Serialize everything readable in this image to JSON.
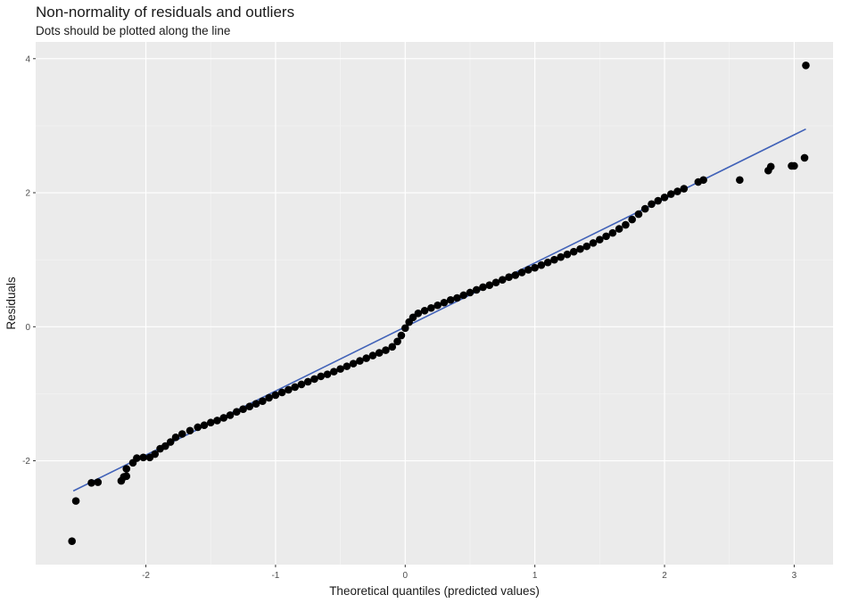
{
  "chart_data": {
    "type": "scatter",
    "title": "Non-normality of residuals and outliers",
    "subtitle": "Dots should be plotted along the line",
    "xlabel": "Theoretical quantiles (predicted values)",
    "ylabel": "Residuals",
    "xlim": [
      -2.85,
      3.3
    ],
    "ylim": [
      -3.55,
      4.25
    ],
    "x_ticks": [
      -2,
      -1,
      0,
      1,
      2,
      3
    ],
    "y_ticks": [
      -2,
      0,
      2,
      4
    ],
    "grid": true,
    "reference_line": {
      "color": "#4162b8",
      "x": [
        -2.56,
        3.09
      ],
      "y": [
        -2.45,
        2.95
      ]
    },
    "series": [
      {
        "points": [
          {
            "x": -2.57,
            "y": -3.2
          },
          {
            "x": -2.54,
            "y": -2.6
          },
          {
            "x": -2.42,
            "y": -2.33
          },
          {
            "x": -2.37,
            "y": -2.32
          },
          {
            "x": -2.19,
            "y": -2.3
          },
          {
            "x": -2.17,
            "y": -2.24
          },
          {
            "x": -2.15,
            "y": -2.23
          },
          {
            "x": -2.15,
            "y": -2.12
          },
          {
            "x": -2.1,
            "y": -2.03
          },
          {
            "x": -2.07,
            "y": -1.96
          },
          {
            "x": -2.02,
            "y": -1.95
          },
          {
            "x": -1.97,
            "y": -1.95
          },
          {
            "x": -1.93,
            "y": -1.9
          },
          {
            "x": -1.89,
            "y": -1.82
          },
          {
            "x": -1.85,
            "y": -1.78
          },
          {
            "x": -1.81,
            "y": -1.72
          },
          {
            "x": -1.77,
            "y": -1.65
          },
          {
            "x": -1.72,
            "y": -1.6
          },
          {
            "x": -1.66,
            "y": -1.55
          },
          {
            "x": -1.6,
            "y": -1.5
          },
          {
            "x": -1.55,
            "y": -1.47
          },
          {
            "x": -1.5,
            "y": -1.43
          },
          {
            "x": -1.45,
            "y": -1.4
          },
          {
            "x": -1.4,
            "y": -1.36
          },
          {
            "x": -1.35,
            "y": -1.32
          },
          {
            "x": -1.3,
            "y": -1.27
          },
          {
            "x": -1.25,
            "y": -1.23
          },
          {
            "x": -1.2,
            "y": -1.19
          },
          {
            "x": -1.15,
            "y": -1.15
          },
          {
            "x": -1.1,
            "y": -1.11
          },
          {
            "x": -1.05,
            "y": -1.06
          },
          {
            "x": -1.0,
            "y": -1.02
          },
          {
            "x": -0.95,
            "y": -0.98
          },
          {
            "x": -0.9,
            "y": -0.94
          },
          {
            "x": -0.85,
            "y": -0.9
          },
          {
            "x": -0.8,
            "y": -0.86
          },
          {
            "x": -0.75,
            "y": -0.82
          },
          {
            "x": -0.7,
            "y": -0.78
          },
          {
            "x": -0.65,
            "y": -0.74
          },
          {
            "x": -0.6,
            "y": -0.71
          },
          {
            "x": -0.55,
            "y": -0.67
          },
          {
            "x": -0.5,
            "y": -0.63
          },
          {
            "x": -0.45,
            "y": -0.59
          },
          {
            "x": -0.4,
            "y": -0.55
          },
          {
            "x": -0.35,
            "y": -0.51
          },
          {
            "x": -0.3,
            "y": -0.47
          },
          {
            "x": -0.25,
            "y": -0.43
          },
          {
            "x": -0.2,
            "y": -0.39
          },
          {
            "x": -0.15,
            "y": -0.35
          },
          {
            "x": -0.1,
            "y": -0.3
          },
          {
            "x": -0.06,
            "y": -0.22
          },
          {
            "x": -0.03,
            "y": -0.13
          },
          {
            "x": 0.0,
            "y": -0.02
          },
          {
            "x": 0.03,
            "y": 0.07
          },
          {
            "x": 0.06,
            "y": 0.14
          },
          {
            "x": 0.1,
            "y": 0.2
          },
          {
            "x": 0.15,
            "y": 0.24
          },
          {
            "x": 0.2,
            "y": 0.28
          },
          {
            "x": 0.25,
            "y": 0.32
          },
          {
            "x": 0.3,
            "y": 0.36
          },
          {
            "x": 0.35,
            "y": 0.4
          },
          {
            "x": 0.4,
            "y": 0.43
          },
          {
            "x": 0.45,
            "y": 0.47
          },
          {
            "x": 0.5,
            "y": 0.51
          },
          {
            "x": 0.55,
            "y": 0.55
          },
          {
            "x": 0.6,
            "y": 0.59
          },
          {
            "x": 0.65,
            "y": 0.62
          },
          {
            "x": 0.7,
            "y": 0.66
          },
          {
            "x": 0.75,
            "y": 0.7
          },
          {
            "x": 0.8,
            "y": 0.74
          },
          {
            "x": 0.85,
            "y": 0.77
          },
          {
            "x": 0.9,
            "y": 0.81
          },
          {
            "x": 0.95,
            "y": 0.85
          },
          {
            "x": 1.0,
            "y": 0.88
          },
          {
            "x": 1.05,
            "y": 0.92
          },
          {
            "x": 1.1,
            "y": 0.96
          },
          {
            "x": 1.15,
            "y": 1.0
          },
          {
            "x": 1.2,
            "y": 1.04
          },
          {
            "x": 1.25,
            "y": 1.08
          },
          {
            "x": 1.3,
            "y": 1.12
          },
          {
            "x": 1.35,
            "y": 1.16
          },
          {
            "x": 1.4,
            "y": 1.2
          },
          {
            "x": 1.45,
            "y": 1.25
          },
          {
            "x": 1.5,
            "y": 1.3
          },
          {
            "x": 1.55,
            "y": 1.35
          },
          {
            "x": 1.6,
            "y": 1.4
          },
          {
            "x": 1.65,
            "y": 1.46
          },
          {
            "x": 1.7,
            "y": 1.52
          },
          {
            "x": 1.75,
            "y": 1.6
          },
          {
            "x": 1.8,
            "y": 1.68
          },
          {
            "x": 1.85,
            "y": 1.76
          },
          {
            "x": 1.9,
            "y": 1.83
          },
          {
            "x": 1.95,
            "y": 1.88
          },
          {
            "x": 2.0,
            "y": 1.93
          },
          {
            "x": 2.05,
            "y": 1.98
          },
          {
            "x": 2.1,
            "y": 2.02
          },
          {
            "x": 2.15,
            "y": 2.06
          },
          {
            "x": 2.26,
            "y": 2.16
          },
          {
            "x": 2.3,
            "y": 2.19
          },
          {
            "x": 2.58,
            "y": 2.19
          },
          {
            "x": 2.8,
            "y": 2.33
          },
          {
            "x": 2.82,
            "y": 2.39
          },
          {
            "x": 2.98,
            "y": 2.4
          },
          {
            "x": 3.0,
            "y": 2.4
          },
          {
            "x": 3.08,
            "y": 2.52
          },
          {
            "x": 3.09,
            "y": 3.9
          }
        ]
      }
    ]
  }
}
